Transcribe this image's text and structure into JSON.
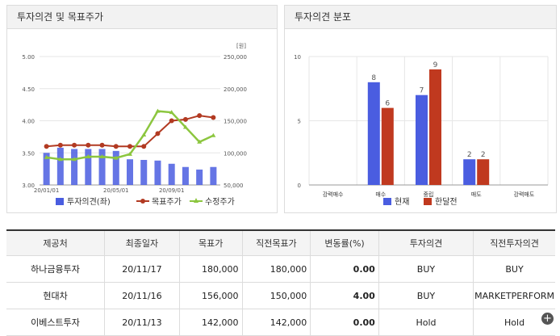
{
  "left_panel": {
    "title": "투자의견 및 목표주가",
    "unit": "[원]",
    "y_left_ticks": [
      "5.00",
      "4.50",
      "4.00",
      "3.50",
      "3.00"
    ],
    "y_right_ticks": [
      "250,000",
      "200,000",
      "150,000",
      "100,000",
      "50,000"
    ],
    "x_ticks": [
      "20/01/01",
      "20/05/01",
      "20/09/01"
    ],
    "legend": [
      "투자의견(좌)",
      "목표주가",
      "수정주가"
    ]
  },
  "right_panel": {
    "title": "투자의견 분포",
    "y_ticks": [
      "10",
      "5",
      "0"
    ],
    "legend": [
      "현재",
      "한달전"
    ]
  },
  "colors": {
    "bar_blue": "#4a5de0",
    "target_red": "#b23a22",
    "adjusted_green": "#8cc63f",
    "prev_red": "#c0391f"
  },
  "chart_data": [
    {
      "type": "line",
      "title": "투자의견 및 목표주가",
      "xlabel": "",
      "ylabel": "",
      "x_ticks": [
        "20/01/01",
        "20/05/01",
        "20/09/01"
      ],
      "ylim_left": [
        3.0,
        5.0
      ],
      "ylim_right": [
        50000,
        250000
      ],
      "series": [
        {
          "name": "투자의견(좌)",
          "kind": "bar",
          "axis": "left",
          "values": [
            3.5,
            3.58,
            3.56,
            3.56,
            3.56,
            3.53,
            3.4,
            3.39,
            3.38,
            3.33,
            3.28,
            3.24,
            3.28
          ]
        },
        {
          "name": "목표주가",
          "kind": "line",
          "axis": "right",
          "values": [
            110000,
            112000,
            112000,
            112000,
            112000,
            110000,
            110000,
            110000,
            130000,
            150000,
            152000,
            158000,
            155000
          ]
        },
        {
          "name": "수정주가",
          "kind": "line",
          "axis": "right",
          "values": [
            93000,
            90000,
            90000,
            94000,
            94000,
            92000,
            98000,
            128000,
            165000,
            163000,
            140000,
            117000,
            127000
          ]
        }
      ]
    },
    {
      "type": "bar",
      "title": "투자의견 분포",
      "categories": [
        "강력매수",
        "매수",
        "중립",
        "매도",
        "강력매도"
      ],
      "ylim": [
        0,
        10
      ],
      "series": [
        {
          "name": "현재",
          "values": [
            0,
            8,
            7,
            2,
            0
          ]
        },
        {
          "name": "한달전",
          "values": [
            0,
            6,
            9,
            2,
            0
          ]
        }
      ]
    }
  ],
  "table": {
    "headers": [
      "제공처",
      "최종일자",
      "목표가",
      "직전목표가",
      "변동률(%)",
      "투자의견",
      "직전투자의견"
    ],
    "rows": [
      [
        "하나금융투자",
        "20/11/17",
        "180,000",
        "180,000",
        "0.00",
        "BUY",
        "BUY"
      ],
      [
        "현대차",
        "20/11/16",
        "156,000",
        "150,000",
        "4.00",
        "BUY",
        "MARKETPERFORM"
      ],
      [
        "이베스트투자",
        "20/11/13",
        "142,000",
        "142,000",
        "0.00",
        "Hold",
        "Hold"
      ]
    ]
  },
  "more_icon": "plus-circle-icon"
}
